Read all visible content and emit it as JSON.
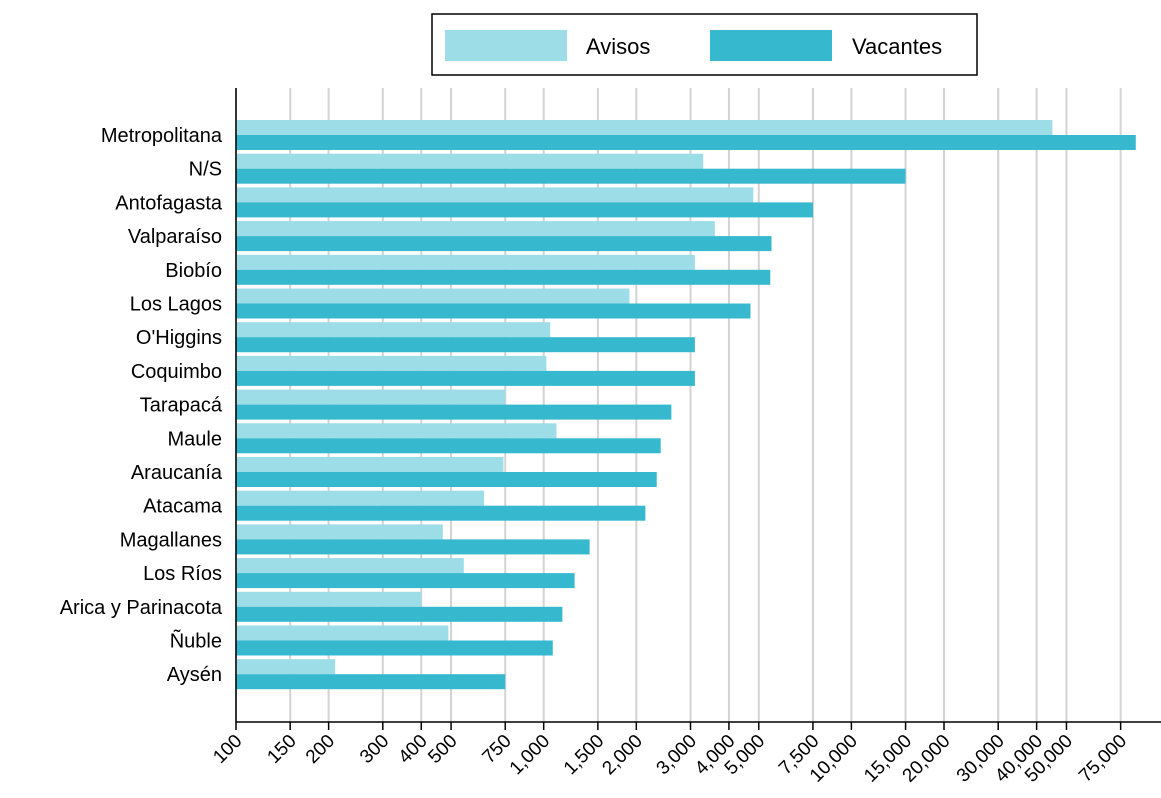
{
  "chart_data": {
    "type": "bar",
    "orientation": "horizontal",
    "x_scale": "log",
    "xlim": [
      100,
      90000
    ],
    "grid": "vertical",
    "legend_position": "top",
    "categories": [
      "Metropolitana",
      "N/S",
      "Antofagasta",
      "Valparaíso",
      "Biobío",
      "Los Lagos",
      "O'Higgins",
      "Coquimbo",
      "Tarapacá",
      "Maule",
      "Araucanía",
      "Atacama",
      "Magallanes",
      "Los Ríos",
      "Arica y Parinacota",
      "Ñuble",
      "Aysén"
    ],
    "series": [
      {
        "name": "Avisos",
        "color": "#9cdde7",
        "values": [
          45000,
          3300,
          4800,
          3600,
          3100,
          1900,
          1050,
          1020,
          750,
          1100,
          740,
          640,
          470,
          550,
          400,
          490,
          210
        ]
      },
      {
        "name": "Vacantes",
        "color": "#36b8cf",
        "values": [
          84000,
          15000,
          7500,
          5500,
          5450,
          4700,
          3100,
          3100,
          2600,
          2400,
          2330,
          2140,
          1410,
          1260,
          1150,
          1070,
          750
        ]
      }
    ],
    "x_ticks": [
      {
        "value": 100,
        "label": "100"
      },
      {
        "value": 150,
        "label": "150"
      },
      {
        "value": 200,
        "label": "200"
      },
      {
        "value": 300,
        "label": "300"
      },
      {
        "value": 400,
        "label": "400"
      },
      {
        "value": 500,
        "label": "500"
      },
      {
        "value": 750,
        "label": "750"
      },
      {
        "value": 1000,
        "label": "1,000"
      },
      {
        "value": 1500,
        "label": "1,500"
      },
      {
        "value": 2000,
        "label": "2,000"
      },
      {
        "value": 3000,
        "label": "3,000"
      },
      {
        "value": 4000,
        "label": "4,000"
      },
      {
        "value": 5000,
        "label": "5,000"
      },
      {
        "value": 7500,
        "label": "7,500"
      },
      {
        "value": 10000,
        "label": "10,000"
      },
      {
        "value": 15000,
        "label": "15,000"
      },
      {
        "value": 20000,
        "label": "20,000"
      },
      {
        "value": 30000,
        "label": "30,000"
      },
      {
        "value": 40000,
        "label": "40,000"
      },
      {
        "value": 50000,
        "label": "50,000"
      },
      {
        "value": 75000,
        "label": "75,000"
      }
    ]
  }
}
